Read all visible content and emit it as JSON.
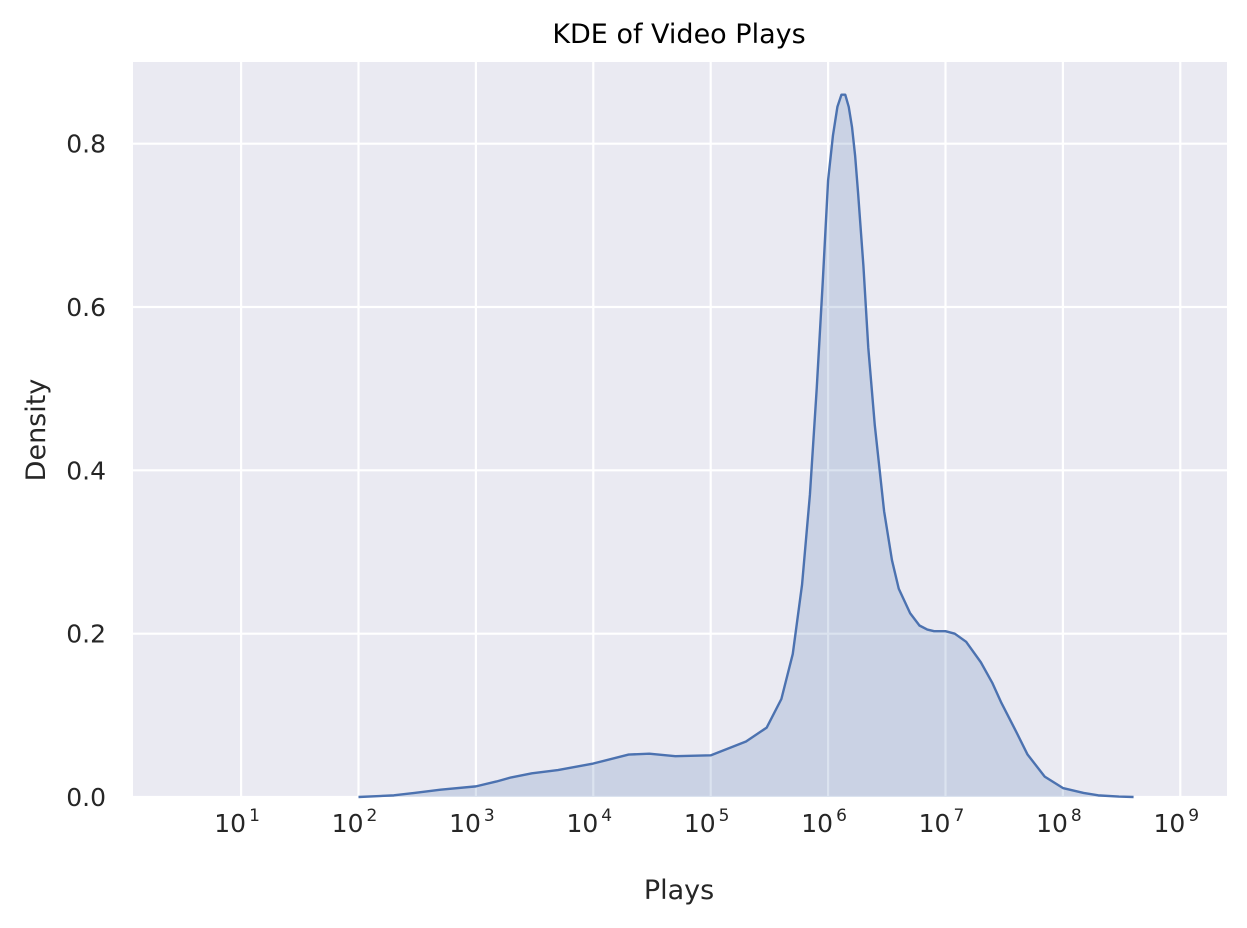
{
  "chart_data": {
    "type": "area",
    "title": "KDE of Video Plays",
    "xlabel": "Plays",
    "ylabel": "Density",
    "xscale": "log",
    "xlim": [
      1.2,
      2500000000
    ],
    "ylim": [
      0,
      0.9
    ],
    "grid": true,
    "legend": "none",
    "x_ticks": [
      {
        "value": 10,
        "base": "10",
        "exp": "1"
      },
      {
        "value": 100,
        "base": "10",
        "exp": "2"
      },
      {
        "value": 1000,
        "base": "10",
        "exp": "3"
      },
      {
        "value": 10000,
        "base": "10",
        "exp": "4"
      },
      {
        "value": 100000,
        "base": "10",
        "exp": "5"
      },
      {
        "value": 1000000,
        "base": "10",
        "exp": "6"
      },
      {
        "value": 10000000,
        "base": "10",
        "exp": "7"
      },
      {
        "value": 100000000,
        "base": "10",
        "exp": "8"
      },
      {
        "value": 1000000000,
        "base": "10",
        "exp": "9"
      }
    ],
    "y_ticks": [
      {
        "value": 0.0,
        "label": "0.0"
      },
      {
        "value": 0.2,
        "label": "0.2"
      },
      {
        "value": 0.4,
        "label": "0.4"
      },
      {
        "value": 0.6,
        "label": "0.6"
      },
      {
        "value": 0.8,
        "label": "0.8"
      }
    ],
    "series": [
      {
        "x": [
          100,
          200,
          300,
          500,
          1000,
          1500,
          2000,
          3000,
          5000,
          10000,
          20000,
          30000,
          50000,
          100000,
          200000,
          300000,
          400000,
          500000,
          600000,
          700000,
          800000,
          900000,
          1000000,
          1100000,
          1200000,
          1300000,
          1400000,
          1500000,
          1600000,
          1700000,
          1800000,
          2000000,
          2200000,
          2500000,
          3000000,
          3500000,
          4000000,
          5000000,
          6000000,
          7000000,
          8000000,
          10000000,
          12000000,
          15000000,
          20000000,
          25000000,
          30000000,
          40000000,
          50000000,
          70000000,
          100000000,
          150000000,
          200000000,
          300000000,
          400000000
        ],
        "y": [
          0.0,
          0.002,
          0.005,
          0.009,
          0.013,
          0.019,
          0.024,
          0.029,
          0.033,
          0.041,
          0.052,
          0.053,
          0.05,
          0.051,
          0.068,
          0.085,
          0.12,
          0.175,
          0.26,
          0.37,
          0.5,
          0.63,
          0.755,
          0.81,
          0.845,
          0.86,
          0.86,
          0.845,
          0.82,
          0.785,
          0.74,
          0.65,
          0.55,
          0.455,
          0.35,
          0.29,
          0.255,
          0.225,
          0.21,
          0.205,
          0.203,
          0.203,
          0.2,
          0.19,
          0.165,
          0.14,
          0.115,
          0.08,
          0.052,
          0.025,
          0.011,
          0.005,
          0.002,
          0.0005,
          0.0
        ]
      }
    ],
    "colors": {
      "line": "#4c72b0",
      "fill": "#4c72b0",
      "plot_bg": "#eaeaf2",
      "grid": "#ffffff"
    }
  }
}
